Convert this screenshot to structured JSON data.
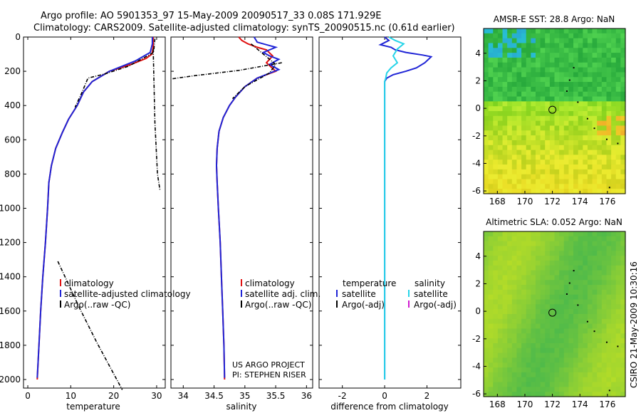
{
  "title_line1": "Argo profile: AO 5901353_97 15-May-2009 20090517_33 0.08S 171.929E",
  "title_line2": "Climatology: CARS2009. Satellite-adjusted climatology: synTS_20090515.nc (0.61d earlier)",
  "side_stamp": "CSIRO 21-May-2009 10:30:16",
  "colors": {
    "climatology": "#e01010",
    "satellite": "#1f24d6",
    "argo": "#000000",
    "sal_satellite": "#26d4e8",
    "sal_argo": "#d01ad0"
  },
  "chart_data": [
    {
      "type": "line",
      "name": "temperature-profile",
      "xlabel": "temperature",
      "ylabel": "",
      "xlim": [
        -1,
        32
      ],
      "ylim": [
        2050,
        0
      ],
      "xticks": [
        0,
        10,
        20,
        30
      ],
      "yticks": [
        0,
        200,
        400,
        600,
        800,
        1000,
        1200,
        1400,
        1600,
        1800,
        2000
      ],
      "legend": [
        "climatology",
        "satellite-adjusted climatology",
        "Argo(..raw -QC)"
      ],
      "series": [
        {
          "name": "climatology",
          "color": "red",
          "points": [
            [
              29.2,
              0
            ],
            [
              29.2,
              60
            ],
            [
              28.9,
              100
            ],
            [
              27.5,
              125
            ],
            [
              24,
              160
            ],
            [
              19,
              200
            ],
            [
              15,
              260
            ],
            [
              13,
              320
            ],
            [
              11.5,
              400
            ],
            [
              9.5,
              480
            ],
            [
              8,
              560
            ],
            [
              6.5,
              650
            ],
            [
              5.5,
              750
            ],
            [
              4.9,
              850
            ],
            [
              4.6,
              1000
            ],
            [
              4.1,
              1200
            ],
            [
              3.5,
              1400
            ],
            [
              3.0,
              1600
            ],
            [
              2.6,
              1800
            ],
            [
              2.2,
              2000
            ]
          ]
        },
        {
          "name": "satellite",
          "color": "blue",
          "points": [
            [
              29.0,
              0
            ],
            [
              29.0,
              40
            ],
            [
              28.5,
              90
            ],
            [
              25,
              140
            ],
            [
              19,
              200
            ],
            [
              15,
              260
            ],
            [
              13,
              320
            ],
            [
              11.5,
              400
            ],
            [
              9.5,
              480
            ],
            [
              8,
              560
            ],
            [
              6.5,
              650
            ],
            [
              5.5,
              750
            ],
            [
              4.9,
              850
            ],
            [
              4.6,
              1000
            ],
            [
              4.1,
              1200
            ],
            [
              3.5,
              1400
            ],
            [
              3.0,
              1600
            ],
            [
              2.6,
              1800
            ],
            [
              2.2,
              1990
            ]
          ]
        },
        {
          "name": "argo",
          "color": "black",
          "points": [
            [
              29.6,
              10
            ],
            [
              29.3,
              90
            ],
            [
              23.5,
              170
            ],
            [
              18,
              215
            ],
            [
              14,
              240
            ],
            [
              12.5,
              330
            ],
            [
              11,
              410
            ]
          ]
        },
        {
          "name": "argo-raw-segment-a",
          "color": "black",
          "points": [
            [
              29.2,
              70
            ],
            [
              29.6,
              500
            ],
            [
              30.2,
              800
            ],
            [
              30.8,
              900
            ]
          ]
        },
        {
          "name": "argo-raw-segment-b",
          "color": "black",
          "points": [
            [
              7,
              1310
            ],
            [
              12,
              1580
            ],
            [
              16,
              1780
            ],
            [
              22,
              2060
            ]
          ]
        }
      ]
    },
    {
      "type": "line",
      "name": "salinity-profile",
      "xlabel": "salinity",
      "xlim": [
        33.8,
        36.1
      ],
      "ylim": [
        2050,
        0
      ],
      "xticks": [
        34,
        34.5,
        35,
        35.5,
        36
      ],
      "legend": [
        "climatology",
        "satellite adj. clim.",
        "Argo(..raw -QC)"
      ],
      "annotation": [
        "US ARGO PROJECT",
        "PI: STEPHEN RISER"
      ],
      "series": [
        {
          "name": "climatology",
          "color": "red",
          "points": [
            [
              34.9,
              0
            ],
            [
              34.95,
              20
            ],
            [
              35.05,
              40
            ],
            [
              35.2,
              60
            ],
            [
              35.35,
              75
            ],
            [
              35.45,
              110
            ],
            [
              35.35,
              150
            ],
            [
              35.5,
              200
            ],
            [
              35.2,
              240
            ],
            [
              35.0,
              290
            ],
            [
              34.85,
              350
            ],
            [
              34.75,
              400
            ],
            [
              34.65,
              470
            ],
            [
              34.58,
              550
            ],
            [
              34.55,
              650
            ],
            [
              34.54,
              750
            ],
            [
              34.55,
              850
            ],
            [
              34.57,
              1000
            ],
            [
              34.6,
              1200
            ],
            [
              34.62,
              1400
            ],
            [
              34.64,
              1600
            ],
            [
              34.66,
              1800
            ],
            [
              34.67,
              2000
            ]
          ]
        },
        {
          "name": "satellite",
          "color": "blue",
          "points": [
            [
              35.15,
              0
            ],
            [
              35.2,
              30
            ],
            [
              35.5,
              60
            ],
            [
              35.3,
              90
            ],
            [
              35.4,
              110
            ],
            [
              35.55,
              130
            ],
            [
              35.4,
              160
            ],
            [
              35.55,
              190
            ],
            [
              35.2,
              240
            ],
            [
              35.0,
              290
            ],
            [
              34.85,
              350
            ],
            [
              34.75,
              400
            ],
            [
              34.65,
              470
            ],
            [
              34.58,
              550
            ],
            [
              34.55,
              650
            ],
            [
              34.54,
              750
            ],
            [
              34.55,
              850
            ],
            [
              34.57,
              1000
            ],
            [
              34.6,
              1200
            ],
            [
              34.62,
              1400
            ],
            [
              34.64,
              1600
            ],
            [
              34.66,
              1800
            ],
            [
              34.67,
              1990
            ]
          ]
        },
        {
          "name": "argo",
          "color": "black",
          "points": [
            [
              35.1,
              40
            ],
            [
              35.3,
              100
            ],
            [
              35.5,
              160
            ],
            [
              35.4,
              210
            ],
            [
              35.2,
              250
            ],
            [
              35.0,
              290
            ],
            [
              34.8,
              360
            ]
          ]
        },
        {
          "name": "argo-raw-segment",
          "color": "black",
          "points": [
            [
              35.6,
              150
            ],
            [
              34.9,
              195
            ],
            [
              34.2,
              225
            ],
            [
              33.8,
              245
            ]
          ]
        }
      ]
    },
    {
      "type": "line",
      "name": "difference-profile",
      "xlabel": "difference from climatology",
      "xlim": [
        -3.1,
        3.6
      ],
      "ylim": [
        2050,
        0
      ],
      "xticks": [
        -2,
        0,
        2
      ],
      "legend_headers": [
        "temperature",
        "salinity"
      ],
      "legend": [
        "satellite",
        "Argo(-adj)",
        "satellite",
        "Argo(-adj)"
      ],
      "series": [
        {
          "name": "temperature-satellite",
          "color": "blue",
          "points": [
            [
              0,
              0
            ],
            [
              0.2,
              20
            ],
            [
              -0.2,
              45
            ],
            [
              0.3,
              60
            ],
            [
              0.5,
              75
            ],
            [
              1.0,
              90
            ],
            [
              1.8,
              105
            ],
            [
              2.2,
              115
            ],
            [
              1.9,
              150
            ],
            [
              1.5,
              180
            ],
            [
              1.0,
              200
            ],
            [
              0.4,
              220
            ],
            [
              0.1,
              240
            ],
            [
              0,
              260
            ],
            [
              0,
              2000
            ]
          ]
        },
        {
          "name": "salinity-satellite",
          "color": "cyan",
          "points": [
            [
              0.2,
              0
            ],
            [
              0.5,
              20
            ],
            [
              0.9,
              40
            ],
            [
              0.6,
              70
            ],
            [
              0.4,
              110
            ],
            [
              0.6,
              150
            ],
            [
              0.3,
              180
            ],
            [
              0.1,
              210
            ],
            [
              0.05,
              240
            ],
            [
              0,
              260
            ],
            [
              0,
              2000
            ]
          ]
        }
      ]
    },
    {
      "type": "heatmap",
      "name": "amsr-sst-map",
      "title": "AMSR-E SST: 28.8 Argo: NaN",
      "xlim": [
        167,
        177.3
      ],
      "ylim": [
        -6.2,
        5.8
      ],
      "xticks": [
        168,
        170,
        172,
        174,
        176
      ],
      "yticks": [
        4,
        2,
        0,
        -2,
        -4,
        -6
      ],
      "marker": {
        "lon": 172,
        "lat": -0.1
      }
    },
    {
      "type": "heatmap",
      "name": "altimetric-sla-map",
      "title": "Altimetric SLA: 0.052 Argo: NaN",
      "xlim": [
        167,
        177.3
      ],
      "ylim": [
        -6.2,
        5.8
      ],
      "xticks": [
        168,
        170,
        172,
        174,
        176
      ],
      "yticks": [
        4,
        2,
        0,
        -2,
        -4,
        -6
      ],
      "marker": {
        "lon": 172,
        "lat": -0.1
      }
    }
  ]
}
